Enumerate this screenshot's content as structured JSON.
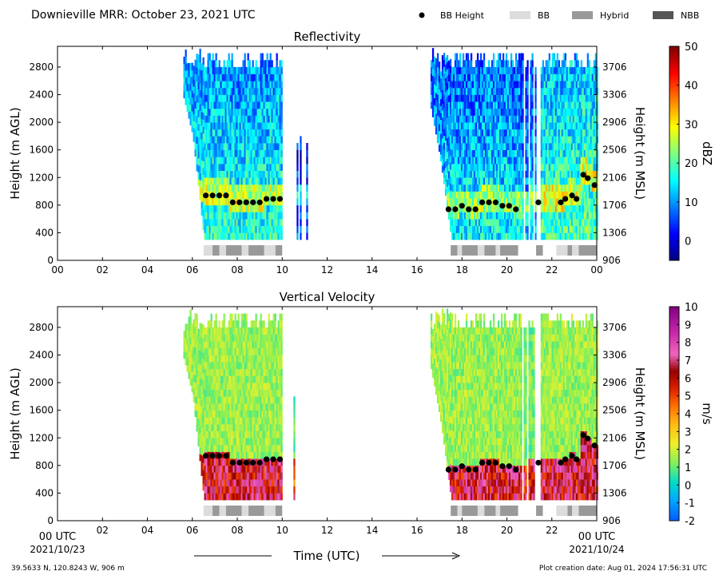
{
  "header": {
    "title": "Downieville MRR:  October 23, 2021 UTC",
    "legend": [
      {
        "kind": "dot",
        "label": "BB Height",
        "color": "#000000"
      },
      {
        "kind": "box",
        "label": "BB",
        "color": "#dcdcdc"
      },
      {
        "kind": "box",
        "label": "Hybrid",
        "color": "#999999"
      },
      {
        "kind": "box",
        "label": "NBB",
        "color": "#555555"
      }
    ]
  },
  "footer": {
    "location": "39.5633 N, 120.8243 W, 906 m",
    "creation": "Plot creation date: Aug 01, 2024 17:56:31 UTC",
    "xlabel": "Time (UTC)",
    "start_label": "00 UTC",
    "start_date": "2021/10/23",
    "end_label": "00 UTC",
    "end_date": "2021/10/24"
  },
  "chart_data": [
    {
      "type": "heatmap",
      "title": "Reflectivity",
      "ylabel": "Height (m AGL)",
      "ylabel_right": "Height (m MSL)",
      "xlim": [
        0,
        24
      ],
      "ylim": [
        0,
        3100
      ],
      "x_ticks": [
        "00",
        "02",
        "04",
        "06",
        "08",
        "10",
        "12",
        "14",
        "16",
        "18",
        "20",
        "22",
        "00"
      ],
      "y_ticks": [
        0,
        400,
        800,
        1200,
        1600,
        2000,
        2400,
        2800
      ],
      "y_ticks_right": [
        906,
        1306,
        1706,
        2106,
        2506,
        2906,
        3306,
        3706
      ],
      "colorbar": {
        "label": "dBZ",
        "min": -5,
        "max": 50,
        "ticks": [
          "0",
          "10",
          "20",
          "30",
          "40",
          "50"
        ],
        "tick_values": [
          0,
          10,
          20,
          30,
          40,
          50
        ]
      },
      "precip_segments": [
        {
          "start": 5.6,
          "end": 10.0,
          "top": 3000,
          "bottom_curve": [
            [
              5.6,
              2350
            ],
            [
              6.0,
              1800
            ],
            [
              6.3,
              900
            ],
            [
              6.5,
              300
            ]
          ],
          "intensity": 16
        },
        {
          "start": 10.5,
          "end": 11.1,
          "top": 1800,
          "bottom": 300,
          "intensity": 5,
          "sparse": true
        },
        {
          "start": 16.6,
          "end": 20.6,
          "top": 3000,
          "bottom_curve": [
            [
              16.6,
              2200
            ],
            [
              17.0,
              1500
            ],
            [
              17.3,
              800
            ],
            [
              17.5,
              300
            ]
          ],
          "intensity": 14
        },
        {
          "start": 20.6,
          "end": 21.3,
          "top": 3000,
          "bottom": 300,
          "intensity": 12,
          "sparse": true
        },
        {
          "start": 21.5,
          "end": 24.0,
          "top": 3000,
          "bottom": 300,
          "intensity": 18
        }
      ],
      "bb_height": {
        "x": [
          6.6,
          6.9,
          7.2,
          7.5,
          7.8,
          8.1,
          8.4,
          8.7,
          9.0,
          9.3,
          9.6,
          9.9,
          17.4,
          17.7,
          18.0,
          18.3,
          18.6,
          18.9,
          19.2,
          19.5,
          19.8,
          20.1,
          20.4,
          21.4,
          22.4,
          22.6,
          22.9,
          23.1,
          23.4,
          23.6,
          23.9
        ],
        "y": [
          940,
          940,
          940,
          940,
          840,
          840,
          840,
          840,
          840,
          890,
          890,
          890,
          740,
          740,
          790,
          740,
          740,
          840,
          840,
          840,
          790,
          790,
          740,
          840,
          840,
          890,
          940,
          890,
          1240,
          1190,
          1090
        ]
      },
      "bb_type_bar": [
        {
          "start": 6.5,
          "end": 6.9,
          "type": "BB"
        },
        {
          "start": 6.9,
          "end": 7.2,
          "type": "Hybrid"
        },
        {
          "start": 7.2,
          "end": 7.5,
          "type": "BB"
        },
        {
          "start": 7.5,
          "end": 8.2,
          "type": "Hybrid"
        },
        {
          "start": 8.2,
          "end": 8.5,
          "type": "BB"
        },
        {
          "start": 8.5,
          "end": 9.2,
          "type": "Hybrid"
        },
        {
          "start": 9.2,
          "end": 9.7,
          "type": "BB"
        },
        {
          "start": 9.7,
          "end": 10.0,
          "type": "Hybrid"
        },
        {
          "start": 17.5,
          "end": 17.8,
          "type": "Hybrid"
        },
        {
          "start": 17.8,
          "end": 18.0,
          "type": "BB"
        },
        {
          "start": 18.0,
          "end": 18.7,
          "type": "Hybrid"
        },
        {
          "start": 18.7,
          "end": 19.0,
          "type": "BB"
        },
        {
          "start": 19.0,
          "end": 19.5,
          "type": "Hybrid"
        },
        {
          "start": 19.5,
          "end": 19.7,
          "type": "BB"
        },
        {
          "start": 19.7,
          "end": 20.5,
          "type": "Hybrid"
        },
        {
          "start": 21.3,
          "end": 21.6,
          "type": "Hybrid"
        },
        {
          "start": 22.2,
          "end": 22.7,
          "type": "BB"
        },
        {
          "start": 22.7,
          "end": 22.9,
          "type": "Hybrid"
        },
        {
          "start": 22.9,
          "end": 23.2,
          "type": "BB"
        },
        {
          "start": 23.2,
          "end": 24.0,
          "type": "Hybrid"
        }
      ]
    },
    {
      "type": "heatmap",
      "title": "Vertical Velocity",
      "ylabel": "Height (m AGL)",
      "ylabel_right": "Height (m MSL)",
      "xlim": [
        0,
        24
      ],
      "ylim": [
        0,
        3100
      ],
      "x_ticks": [
        "00 UTC",
        "02",
        "04",
        "06",
        "08",
        "10",
        "12",
        "14",
        "16",
        "18",
        "20",
        "22",
        "00 UTC"
      ],
      "y_ticks": [
        0,
        400,
        800,
        1200,
        1600,
        2000,
        2400,
        2800
      ],
      "y_ticks_right": [
        906,
        1306,
        1706,
        2106,
        2506,
        2906,
        3306,
        3706
      ],
      "colorbar": {
        "label": "m/s",
        "min": -2,
        "max": 10,
        "ticks": [
          "-2",
          "-1",
          "0",
          "1",
          "2",
          "3",
          "4",
          "5",
          "6",
          "7",
          "8",
          "9",
          "10"
        ],
        "tick_values": [
          -2,
          -1,
          0,
          1,
          2,
          3,
          4,
          5,
          6,
          7,
          8,
          9,
          10
        ]
      },
      "precip_segments": [
        {
          "start": 5.6,
          "end": 10.0,
          "top": 3000,
          "bottom_curve": [
            [
              5.6,
              2350
            ],
            [
              6.0,
              1800
            ],
            [
              6.3,
              900
            ],
            [
              6.5,
              300
            ]
          ],
          "snow_value": 1.5,
          "rain_value": 6.5
        },
        {
          "start": 10.5,
          "end": 11.1,
          "top": 1800,
          "bottom": 300,
          "snow_value": 1.0,
          "rain_value": 5.5,
          "sparse": true
        },
        {
          "start": 16.6,
          "end": 20.6,
          "top": 3000,
          "bottom_curve": [
            [
              16.6,
              2200
            ],
            [
              17.0,
              1500
            ],
            [
              17.3,
              800
            ],
            [
              17.5,
              300
            ]
          ],
          "snow_value": 1.5,
          "rain_value": 6.5
        },
        {
          "start": 20.6,
          "end": 21.3,
          "top": 3000,
          "bottom": 300,
          "snow_value": 1.2,
          "rain_value": 6.0,
          "sparse": true
        },
        {
          "start": 21.5,
          "end": 24.0,
          "top": 3000,
          "bottom": 300,
          "snow_value": 1.5,
          "rain_value": 6.5
        }
      ],
      "bb_height": {
        "x": [
          6.6,
          6.9,
          7.2,
          7.5,
          7.8,
          8.1,
          8.4,
          8.7,
          9.0,
          9.3,
          9.6,
          9.9,
          17.4,
          17.7,
          18.0,
          18.3,
          18.6,
          18.9,
          19.2,
          19.5,
          19.8,
          20.1,
          20.4,
          21.4,
          22.4,
          22.6,
          22.9,
          23.1,
          23.4,
          23.6,
          23.9
        ],
        "y": [
          940,
          940,
          940,
          940,
          840,
          840,
          840,
          840,
          840,
          890,
          890,
          890,
          740,
          740,
          790,
          740,
          740,
          840,
          840,
          840,
          790,
          790,
          740,
          840,
          840,
          890,
          940,
          890,
          1240,
          1190,
          1090
        ]
      },
      "bb_type_bar": [
        {
          "start": 6.5,
          "end": 6.9,
          "type": "BB"
        },
        {
          "start": 6.9,
          "end": 7.2,
          "type": "Hybrid"
        },
        {
          "start": 7.2,
          "end": 7.5,
          "type": "BB"
        },
        {
          "start": 7.5,
          "end": 8.2,
          "type": "Hybrid"
        },
        {
          "start": 8.2,
          "end": 8.5,
          "type": "BB"
        },
        {
          "start": 8.5,
          "end": 9.2,
          "type": "Hybrid"
        },
        {
          "start": 9.2,
          "end": 9.7,
          "type": "BB"
        },
        {
          "start": 9.7,
          "end": 10.0,
          "type": "Hybrid"
        },
        {
          "start": 17.5,
          "end": 17.8,
          "type": "Hybrid"
        },
        {
          "start": 17.8,
          "end": 18.0,
          "type": "BB"
        },
        {
          "start": 18.0,
          "end": 18.7,
          "type": "Hybrid"
        },
        {
          "start": 18.7,
          "end": 19.0,
          "type": "BB"
        },
        {
          "start": 19.0,
          "end": 19.5,
          "type": "Hybrid"
        },
        {
          "start": 19.5,
          "end": 19.7,
          "type": "BB"
        },
        {
          "start": 19.7,
          "end": 20.5,
          "type": "Hybrid"
        },
        {
          "start": 21.3,
          "end": 21.6,
          "type": "Hybrid"
        },
        {
          "start": 22.2,
          "end": 22.7,
          "type": "BB"
        },
        {
          "start": 22.7,
          "end": 22.9,
          "type": "Hybrid"
        },
        {
          "start": 22.9,
          "end": 23.2,
          "type": "BB"
        },
        {
          "start": 23.2,
          "end": 24.0,
          "type": "Hybrid"
        }
      ]
    }
  ]
}
